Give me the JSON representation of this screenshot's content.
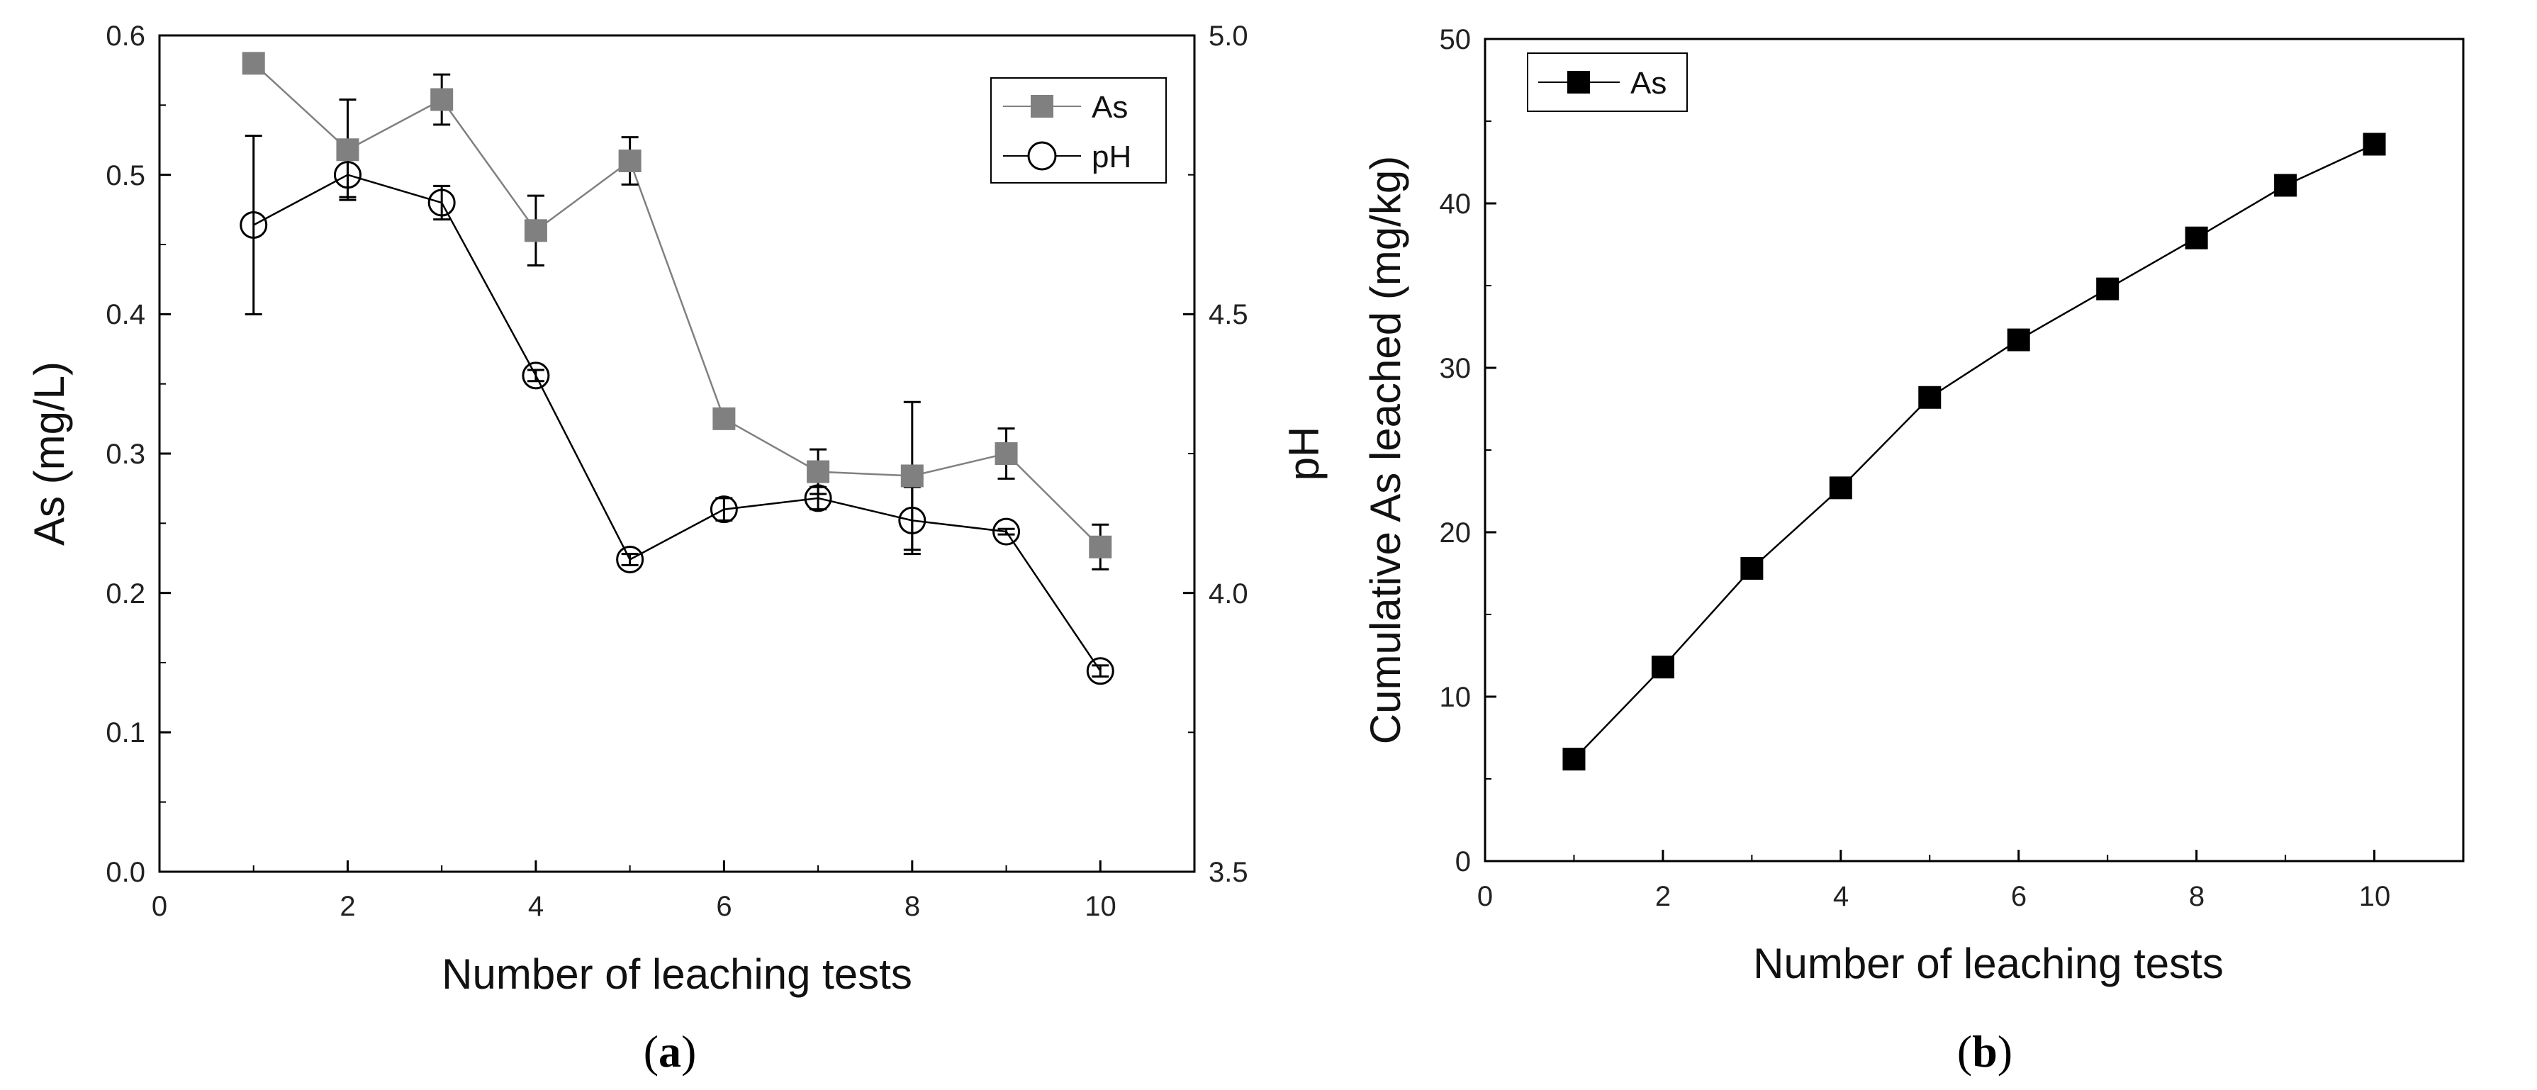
{
  "chart_data": [
    {
      "type": "line",
      "caption_open": "(",
      "caption_letter": "a",
      "caption_close": ")",
      "xlabel": "Number of leaching tests",
      "ylabel": "As (mg/L)",
      "y2label": "pH",
      "xlim": [
        0,
        11
      ],
      "ylim": [
        0,
        0.6
      ],
      "y2lim": [
        3.5,
        5.0
      ],
      "x_ticks": [
        "0",
        "2",
        "4",
        "6",
        "8",
        "10"
      ],
      "y_ticks": [
        "0.0",
        "0.1",
        "0.2",
        "0.3",
        "0.4",
        "0.5",
        "0.6"
      ],
      "y2_ticks": [
        "3.5",
        "4.0",
        "4.5",
        "5.0"
      ],
      "legend": [
        "As",
        "pH"
      ],
      "series": [
        {
          "name": "As",
          "axis": "left",
          "marker": "square",
          "color": "#808080",
          "x": [
            1,
            2,
            3,
            4,
            5,
            6,
            7,
            8,
            9,
            10
          ],
          "values": [
            0.58,
            0.518,
            0.554,
            0.46,
            0.51,
            0.325,
            0.287,
            0.284,
            0.3,
            0.233
          ],
          "errors": [
            0.006,
            0.036,
            0.018,
            0.025,
            0.017,
            0.007,
            0.016,
            0.053,
            0.018,
            0.016
          ]
        },
        {
          "name": "pH",
          "axis": "right",
          "marker": "circle",
          "color": "#000000",
          "x": [
            1,
            2,
            3,
            4,
            5,
            6,
            7,
            8,
            9,
            10
          ],
          "values": [
            4.66,
            4.75,
            4.7,
            4.39,
            4.06,
            4.15,
            4.17,
            4.13,
            4.11,
            3.86
          ],
          "errors": [
            0.16,
            0.04,
            0.03,
            0.01,
            0.01,
            0.02,
            0.02,
            0.06,
            0.005,
            0.01
          ]
        }
      ]
    },
    {
      "type": "line",
      "caption_open": "(",
      "caption_letter": "b",
      "caption_close": ")",
      "xlabel": "Number of leaching tests",
      "ylabel": "Cumulative As leached (mg/kg)",
      "xlim": [
        0,
        11
      ],
      "ylim": [
        0,
        50
      ],
      "x_ticks": [
        "0",
        "2",
        "4",
        "6",
        "8",
        "10"
      ],
      "y_ticks": [
        "0",
        "10",
        "20",
        "30",
        "40",
        "50"
      ],
      "legend": [
        "As"
      ],
      "series": [
        {
          "name": "As",
          "marker": "square",
          "color": "#000000",
          "x": [
            1,
            2,
            3,
            4,
            5,
            6,
            7,
            8,
            9,
            10
          ],
          "values": [
            6.2,
            11.8,
            17.8,
            22.7,
            28.2,
            31.7,
            34.8,
            37.9,
            41.1,
            43.6
          ]
        }
      ]
    }
  ]
}
